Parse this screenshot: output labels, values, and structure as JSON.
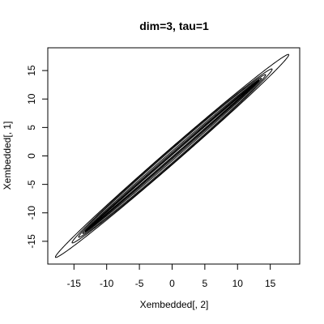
{
  "chart_data": {
    "type": "line",
    "title": "dim=3, tau=1",
    "xlabel": "Xembedded[, 2]",
    "ylabel": "Xembedded[, 1]",
    "xlim": [
      -19,
      19.5
    ],
    "ylim": [
      -19,
      19
    ],
    "xticks": [
      -15,
      -10,
      -5,
      0,
      5,
      10,
      15
    ],
    "yticks": [
      -15,
      -10,
      -5,
      0,
      5,
      10,
      15
    ],
    "grid": false,
    "legend": "none",
    "series": [
      {
        "loop": {
          "a": 25.2,
          "b": 1.1
        },
        "color": "#000000"
      },
      {
        "loop": {
          "a": 21.6,
          "b": 1.0
        },
        "color": "#000000"
      },
      {
        "loop": {
          "a": 20.2,
          "b": 0.85
        },
        "color": "#000000"
      },
      {
        "loop": {
          "a": 19.3,
          "b": 0.6
        },
        "color": "#000000"
      },
      {
        "loop": {
          "a": 18.8,
          "b": 0.4
        },
        "color": "#000000"
      },
      {
        "loop": {
          "a": 18.4,
          "b": 0.25
        },
        "color": "#000000"
      },
      {
        "loop": {
          "a": 18.0,
          "b": 0.12
        },
        "color": "#000000"
      }
    ]
  }
}
